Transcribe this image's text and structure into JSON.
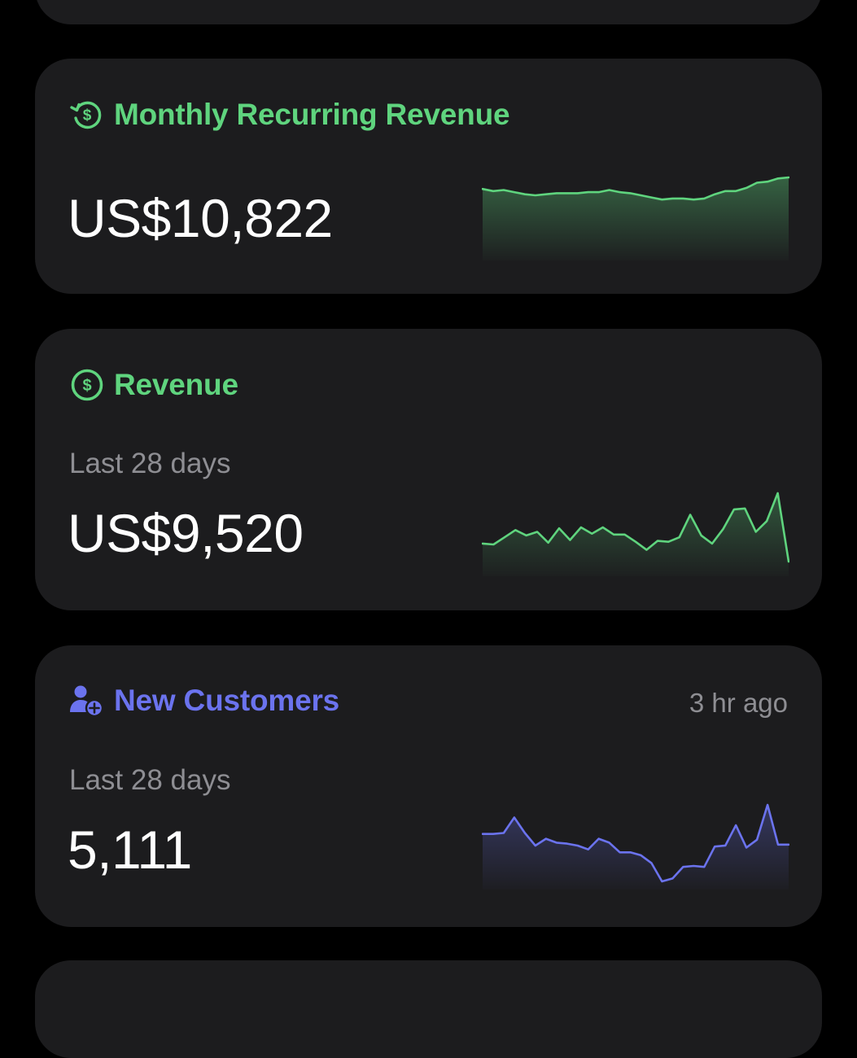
{
  "colors": {
    "background": "#000000",
    "card": "#1c1c1e",
    "green": "#5fd47e",
    "indigo": "#6b73ee",
    "secondary_text": "#8e8e93",
    "primary_text": "#ffffff"
  },
  "cards": {
    "mrr": {
      "icon": "recurring-dollar-icon",
      "title": "Monthly Recurring Revenue",
      "value": "US$10,822"
    },
    "revenue": {
      "icon": "dollar-circle-icon",
      "title": "Revenue",
      "period": "Last 28 days",
      "value": "US$9,520"
    },
    "customers": {
      "icon": "add-person-icon",
      "title": "New Customers",
      "updated": "3 hr ago",
      "period": "Last 28 days",
      "value": "5,111"
    }
  },
  "chart_data": [
    {
      "type": "area",
      "title": "Monthly Recurring Revenue",
      "color": "#5fd47e",
      "x": [
        1,
        2,
        3,
        4,
        5,
        6,
        7,
        8,
        9,
        10,
        11,
        12,
        13,
        14,
        15,
        16,
        17,
        18,
        19,
        20,
        21,
        22,
        23,
        24,
        25,
        26,
        27,
        28,
        29,
        30
      ],
      "values": [
        10.82,
        10.8,
        10.81,
        10.79,
        10.77,
        10.76,
        10.77,
        10.78,
        10.78,
        10.78,
        10.79,
        10.79,
        10.81,
        10.79,
        10.78,
        10.76,
        10.74,
        10.72,
        10.73,
        10.73,
        10.72,
        10.73,
        10.77,
        10.8,
        10.8,
        10.83,
        10.88,
        10.89,
        10.92,
        10.93
      ]
    },
    {
      "type": "area",
      "title": "Revenue",
      "color": "#5fd47e",
      "x": [
        1,
        2,
        3,
        4,
        5,
        6,
        7,
        8,
        9,
        10,
        11,
        12,
        13,
        14,
        15,
        16,
        17,
        18,
        19,
        20,
        21,
        22,
        23,
        24,
        25,
        26,
        27,
        28,
        29,
        30,
        31,
        32
      ],
      "values": [
        20,
        19,
        27,
        35,
        29,
        33,
        21,
        37,
        24,
        38,
        31,
        38,
        30,
        30,
        22,
        13,
        23,
        22,
        27,
        52,
        29,
        20,
        36,
        58,
        59,
        33,
        45,
        76,
        0,
        0,
        0,
        0
      ]
    },
    {
      "type": "area",
      "title": "New Customers",
      "color": "#6b73ee",
      "x": [
        1,
        2,
        3,
        4,
        5,
        6,
        7,
        8,
        9,
        10,
        11,
        12,
        13,
        14,
        15,
        16,
        17,
        18,
        19,
        20,
        21,
        22,
        23,
        24,
        25,
        26,
        27,
        28,
        29,
        30
      ],
      "values": [
        58,
        58,
        59,
        75,
        59,
        46,
        53,
        49,
        48,
        46,
        42,
        53,
        49,
        39,
        39,
        36,
        28,
        9,
        12,
        24,
        25,
        24,
        45,
        46,
        67,
        44,
        52,
        88,
        47,
        47
      ]
    }
  ]
}
